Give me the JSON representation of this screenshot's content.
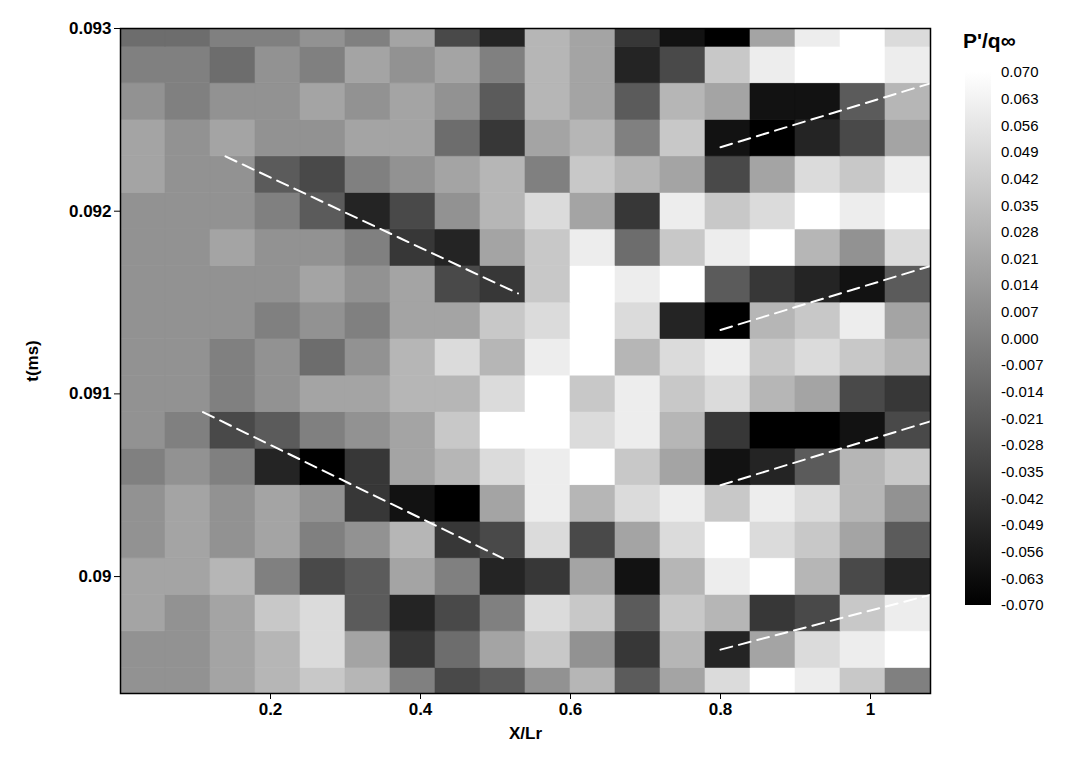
{
  "chart_data": {
    "type": "heatmap",
    "x_label": "X/Lr",
    "y_label": "t(ms)",
    "xlim": [
      0,
      1.08
    ],
    "ylim": [
      0.08936,
      0.093
    ],
    "xticks": [
      0.2,
      0.4,
      0.6,
      0.8,
      1
    ],
    "yticks": [
      0.09,
      0.091,
      0.092,
      0.093
    ],
    "cells": {
      "x": [
        0.03,
        0.09,
        0.15,
        0.21,
        0.27,
        0.33,
        0.39,
        0.45,
        0.51,
        0.57,
        0.63,
        0.69,
        0.75,
        0.81,
        0.87,
        0.93,
        0.99,
        1.05
      ],
      "y": [
        0.0894,
        0.0896,
        0.0898,
        0.09,
        0.0902,
        0.0904,
        0.0906,
        0.0908,
        0.091,
        0.0912,
        0.0914,
        0.0916,
        0.0918,
        0.092,
        0.0922,
        0.0924,
        0.0926,
        0.0928,
        0.093
      ],
      "values": [
        [
          0.01,
          0.01,
          0.02,
          0.03,
          0.04,
          0.03,
          0.0,
          -0.03,
          -0.02,
          0.01,
          0.03,
          -0.02,
          0.02,
          0.05,
          0.07,
          0.06,
          0.04,
          0.0
        ],
        [
          0.01,
          0.01,
          0.02,
          0.03,
          0.05,
          0.02,
          -0.04,
          -0.01,
          0.02,
          0.04,
          0.01,
          -0.04,
          0.03,
          -0.05,
          0.02,
          0.05,
          0.06,
          0.07
        ],
        [
          0.02,
          0.01,
          0.02,
          0.04,
          0.05,
          -0.02,
          -0.05,
          -0.03,
          0.0,
          0.05,
          0.04,
          -0.02,
          0.04,
          0.03,
          -0.04,
          -0.03,
          0.04,
          0.06
        ],
        [
          0.02,
          0.02,
          0.03,
          0.0,
          -0.03,
          -0.02,
          0.02,
          0.0,
          -0.05,
          -0.04,
          0.02,
          -0.06,
          0.03,
          0.06,
          0.07,
          0.03,
          -0.03,
          -0.05
        ],
        [
          0.01,
          0.02,
          0.01,
          0.02,
          0.0,
          0.01,
          0.03,
          -0.04,
          -0.03,
          0.05,
          -0.03,
          0.02,
          0.05,
          0.07,
          0.05,
          0.04,
          0.02,
          -0.02
        ],
        [
          0.01,
          0.02,
          0.01,
          0.02,
          0.01,
          -0.04,
          -0.06,
          -0.07,
          0.02,
          0.06,
          0.03,
          0.05,
          0.06,
          0.04,
          0.06,
          0.05,
          0.03,
          0.01
        ],
        [
          0.0,
          0.01,
          0.0,
          -0.05,
          -0.07,
          -0.04,
          0.02,
          0.03,
          0.05,
          0.06,
          0.07,
          0.04,
          0.02,
          -0.06,
          -0.05,
          -0.02,
          0.03,
          0.04
        ],
        [
          0.01,
          0.0,
          -0.03,
          -0.02,
          0.0,
          0.01,
          0.02,
          0.04,
          0.07,
          0.07,
          0.05,
          0.06,
          0.03,
          -0.04,
          -0.07,
          -0.07,
          -0.06,
          -0.03
        ],
        [
          0.01,
          0.01,
          0.0,
          0.01,
          0.02,
          0.02,
          0.03,
          0.03,
          0.05,
          0.07,
          0.04,
          0.06,
          0.04,
          0.05,
          0.03,
          0.02,
          -0.03,
          -0.04
        ],
        [
          0.01,
          0.01,
          0.0,
          0.01,
          -0.01,
          0.01,
          0.03,
          0.05,
          0.03,
          0.06,
          0.07,
          0.03,
          0.05,
          0.06,
          0.04,
          0.05,
          0.04,
          0.03
        ],
        [
          0.01,
          0.01,
          0.01,
          0.0,
          0.01,
          0.0,
          0.02,
          0.02,
          0.04,
          0.05,
          0.07,
          0.05,
          -0.05,
          -0.07,
          0.03,
          0.04,
          0.06,
          0.02
        ],
        [
          0.01,
          0.01,
          0.01,
          0.01,
          0.02,
          0.01,
          0.02,
          -0.03,
          -0.04,
          0.04,
          0.07,
          0.06,
          0.07,
          -0.02,
          -0.04,
          -0.05,
          -0.06,
          -0.02
        ],
        [
          0.01,
          0.01,
          0.02,
          0.01,
          0.01,
          0.0,
          -0.04,
          -0.05,
          0.02,
          0.04,
          0.06,
          -0.01,
          0.04,
          0.06,
          0.07,
          0.03,
          0.01,
          0.05
        ],
        [
          0.01,
          0.01,
          0.01,
          0.0,
          -0.02,
          -0.05,
          -0.03,
          0.01,
          0.03,
          0.05,
          0.02,
          -0.04,
          0.06,
          0.04,
          0.05,
          0.07,
          0.06,
          0.07
        ],
        [
          0.02,
          0.01,
          0.01,
          -0.02,
          -0.03,
          0.0,
          0.01,
          0.02,
          0.03,
          0.0,
          0.04,
          0.03,
          0.02,
          -0.03,
          0.02,
          0.05,
          0.04,
          0.06
        ],
        [
          0.02,
          0.01,
          0.02,
          0.01,
          0.01,
          0.02,
          0.02,
          -0.01,
          -0.04,
          0.02,
          0.03,
          0.0,
          0.04,
          -0.06,
          -0.07,
          -0.05,
          -0.03,
          0.02
        ],
        [
          0.01,
          0.0,
          0.01,
          0.01,
          0.02,
          0.01,
          0.02,
          0.01,
          -0.02,
          0.03,
          0.02,
          -0.02,
          0.03,
          0.02,
          -0.06,
          -0.06,
          -0.02,
          0.03
        ],
        [
          0.0,
          0.0,
          -0.01,
          0.01,
          0.0,
          0.02,
          0.01,
          0.02,
          0.0,
          0.03,
          0.02,
          -0.05,
          -0.03,
          0.04,
          0.06,
          0.07,
          0.07,
          0.06
        ],
        [
          -0.01,
          -0.01,
          0.0,
          0.0,
          0.01,
          0.0,
          0.02,
          -0.03,
          -0.05,
          0.03,
          0.02,
          -0.04,
          -0.06,
          -0.07,
          0.02,
          0.06,
          0.07,
          0.05
        ]
      ]
    },
    "colorbar": {
      "title": "P'/q∞",
      "range": [
        -0.07,
        0.07
      ],
      "colors": [
        "#000000",
        "#ffffff"
      ],
      "ticks": [
        {
          "value": 0.07,
          "label": "0.070"
        },
        {
          "value": 0.063,
          "label": "0.063"
        },
        {
          "value": 0.056,
          "label": "0.056"
        },
        {
          "value": 0.049,
          "label": "0.049"
        },
        {
          "value": 0.042,
          "label": "0.042"
        },
        {
          "value": 0.035,
          "label": "0.035"
        },
        {
          "value": 0.028,
          "label": "0.028"
        },
        {
          "value": 0.021,
          "label": "0.021"
        },
        {
          "value": 0.014,
          "label": "0.014"
        },
        {
          "value": 0.007,
          "label": "0.007"
        },
        {
          "value": 0,
          "label": "0.000"
        },
        {
          "value": -0.007,
          "label": "-0.007"
        },
        {
          "value": -0.014,
          "label": "-0.014"
        },
        {
          "value": -0.021,
          "label": "-0.021"
        },
        {
          "value": -0.028,
          "label": "-0.028"
        },
        {
          "value": -0.035,
          "label": "-0.035"
        },
        {
          "value": -0.042,
          "label": "-0.042"
        },
        {
          "value": -0.049,
          "label": "-0.049"
        },
        {
          "value": -0.056,
          "label": "-0.056"
        },
        {
          "value": -0.063,
          "label": "-0.063"
        },
        {
          "value": -0.07,
          "label": "-0.070"
        }
      ]
    },
    "lines": [
      {
        "x": [
          0.14,
          0.53
        ],
        "y": [
          0.0923,
          0.09155
        ],
        "color": "#ffffff",
        "line_style": "dashed"
      },
      {
        "x": [
          0.11,
          0.51
        ],
        "y": [
          0.0909,
          0.0901
        ],
        "color": "#ffffff",
        "line_style": "dashed"
      },
      {
        "x": [
          0.8,
          1.08
        ],
        "y": [
          0.09235,
          0.0927
        ],
        "color": "#ffffff",
        "line_style": "dashed"
      },
      {
        "x": [
          0.8,
          1.08
        ],
        "y": [
          0.09135,
          0.0917
        ],
        "color": "#ffffff",
        "line_style": "dashed"
      },
      {
        "x": [
          0.8,
          1.08
        ],
        "y": [
          0.0905,
          0.09085
        ],
        "color": "#ffffff",
        "line_style": "dashed"
      },
      {
        "x": [
          0.8,
          1.08
        ],
        "y": [
          0.0896,
          0.0899
        ],
        "color": "#ffffff",
        "line_style": "dashed"
      }
    ]
  }
}
